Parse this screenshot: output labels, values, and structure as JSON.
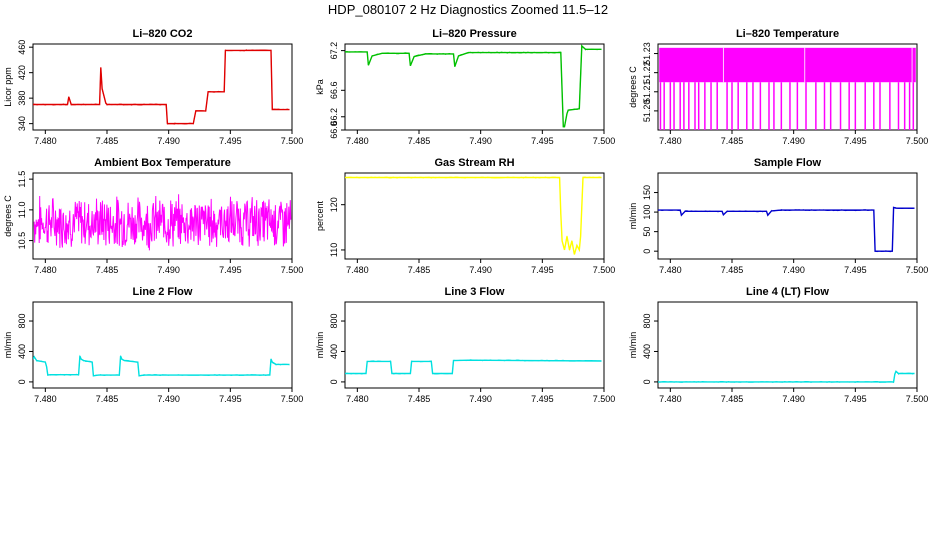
{
  "figure": {
    "title": "HDP_080107  2 Hz Diagnostics Zoomed 11.5–12"
  },
  "chart_data": [
    {
      "type": "line",
      "title": "Li–820 CO2",
      "ylabel": "Licor ppm",
      "color": "#e00000",
      "xlim": [
        7.479,
        7.5
      ],
      "ylim": [
        330,
        465
      ],
      "xticks": [
        "7.480",
        "7.485",
        "7.490",
        "7.495",
        "7.500"
      ],
      "yticks": [
        "340",
        "380",
        "420",
        "460"
      ],
      "x": [
        7.479,
        7.4818,
        7.4819,
        7.4821,
        7.4844,
        7.4845,
        7.4846,
        7.4849,
        7.485,
        7.487,
        7.4898,
        7.4899,
        7.4905,
        7.4906,
        7.492,
        7.4922,
        7.493,
        7.4932,
        7.4945,
        7.4946,
        7.4963,
        7.4983,
        7.4984,
        7.4998
      ],
      "y": [
        370,
        370,
        382,
        370,
        370,
        428,
        395,
        372,
        370,
        370,
        370,
        340,
        340,
        340,
        340,
        360,
        360,
        390,
        390,
        455,
        455,
        455,
        362,
        362
      ]
    },
    {
      "type": "line",
      "title": "Li–820 Pressure",
      "ylabel": "kPa",
      "color": "#00c000",
      "xlim": [
        7.479,
        7.5
      ],
      "ylim": [
        66.0,
        67.3
      ],
      "xticks": [
        "7.480",
        "7.485",
        "7.490",
        "7.495",
        "7.500"
      ],
      "yticks": [
        "66.0",
        "66.2",
        "66.6",
        "67.2"
      ],
      "x": [
        7.479,
        7.4808,
        7.4809,
        7.4812,
        7.482,
        7.4842,
        7.4843,
        7.4846,
        7.4855,
        7.4878,
        7.4879,
        7.4882,
        7.489,
        7.493,
        7.4965,
        7.4967,
        7.4968,
        7.497,
        7.4971,
        7.498,
        7.4982,
        7.4985,
        7.4998
      ],
      "y": [
        67.18,
        67.18,
        66.98,
        67.12,
        67.16,
        67.16,
        66.97,
        67.11,
        67.15,
        67.15,
        66.96,
        67.12,
        67.17,
        67.17,
        67.17,
        66.05,
        66.05,
        66.25,
        66.3,
        66.32,
        67.27,
        67.22,
        67.22
      ]
    },
    {
      "type": "line",
      "title": "Li–820 Temperature",
      "ylabel": "degrees C",
      "color": "#ff00ff",
      "xlim": [
        7.479,
        7.5
      ],
      "ylim": [
        51.19,
        51.235
      ],
      "xticks": [
        "7.480",
        "7.485",
        "7.490",
        "7.495",
        "7.500"
      ],
      "yticks": [
        "51.20",
        "51.21",
        "51.22",
        "51.23"
      ],
      "fill_between": [
        51.215,
        51.233
      ],
      "drop_x": [
        7.4792,
        7.4795,
        7.48,
        7.4803,
        7.4808,
        7.4811,
        7.4815,
        7.482,
        7.4823,
        7.4828,
        7.4833,
        7.4838,
        7.4846,
        7.485,
        7.4855,
        7.4862,
        7.4867,
        7.4873,
        7.488,
        7.4884,
        7.489,
        7.4897,
        7.4903,
        7.491,
        7.4918,
        7.4925,
        7.493,
        7.4938,
        7.4945,
        7.495,
        7.4958,
        7.4965,
        7.497,
        7.4978,
        7.4985,
        7.499,
        7.4994,
        7.4997
      ]
    },
    {
      "type": "line",
      "title": "Ambient Box Temperature",
      "ylabel": "degrees C",
      "color": "#ff00ff",
      "xlim": [
        7.479,
        7.5
      ],
      "ylim": [
        10.2,
        11.6
      ],
      "xticks": [
        "7.480",
        "7.485",
        "7.490",
        "7.495",
        "7.500"
      ],
      "yticks": [
        "10.5",
        "11.0",
        "11.5"
      ],
      "noise": {
        "mean": 10.8,
        "amplitude": 0.35,
        "points": 520,
        "seed": 7
      }
    },
    {
      "type": "line",
      "title": "Gas Stream RH",
      "ylabel": "percent",
      "color": "#ffff00",
      "xlim": [
        7.479,
        7.5
      ],
      "ylim": [
        108,
        127
      ],
      "xticks": [
        "7.480",
        "7.485",
        "7.490",
        "7.495",
        "7.500"
      ],
      "yticks": [
        "110",
        "120"
      ],
      "x": [
        7.479,
        7.4964,
        7.4965,
        7.4966,
        7.4968,
        7.497,
        7.4972,
        7.4974,
        7.4976,
        7.4978,
        7.498,
        7.4981,
        7.4983,
        7.4998
      ],
      "y": [
        126,
        126,
        118,
        112,
        110,
        113,
        110,
        112,
        109,
        111,
        110,
        113,
        126,
        126
      ]
    },
    {
      "type": "line",
      "title": "Sample Flow",
      "ylabel": "ml/min",
      "color": "#0000cc",
      "xlim": [
        7.479,
        7.5
      ],
      "ylim": [
        -20,
        200
      ],
      "xticks": [
        "7.480",
        "7.485",
        "7.490",
        "7.495",
        "7.500"
      ],
      "yticks": [
        "0",
        "50",
        "100",
        "150"
      ],
      "x": [
        7.479,
        7.4808,
        7.4809,
        7.4812,
        7.4842,
        7.4843,
        7.4846,
        7.4878,
        7.4879,
        7.4882,
        7.489,
        7.4965,
        7.4966,
        7.498,
        7.4981,
        7.4983,
        7.4998
      ],
      "y": [
        105,
        105,
        92,
        102,
        102,
        93,
        102,
        102,
        92,
        103,
        105,
        105,
        0,
        0,
        112,
        110,
        110
      ]
    },
    {
      "type": "line",
      "title": "Line 2 Flow",
      "ylabel": "ml/min",
      "color": "#00e0e0",
      "xlim": [
        7.479,
        7.5
      ],
      "ylim": [
        -80,
        1050
      ],
      "xticks": [
        "7.480",
        "7.485",
        "7.490",
        "7.495",
        "7.500"
      ],
      "yticks": [
        "0",
        "400",
        "800"
      ],
      "x": [
        7.479,
        7.4791,
        7.4793,
        7.48,
        7.4801,
        7.4802,
        7.4804,
        7.4827,
        7.4828,
        7.4829,
        7.4831,
        7.4838,
        7.4839,
        7.4843,
        7.486,
        7.4861,
        7.4862,
        7.4864,
        7.4875,
        7.4876,
        7.488,
        7.4982,
        7.4983,
        7.4984,
        7.4987,
        7.4998
      ],
      "y": [
        300,
        330,
        280,
        260,
        200,
        90,
        95,
        95,
        340,
        300,
        280,
        260,
        80,
        90,
        90,
        340,
        300,
        280,
        260,
        80,
        90,
        90,
        300,
        260,
        230,
        230
      ]
    },
    {
      "type": "line",
      "title": "Line 3 Flow",
      "ylabel": "ml/min",
      "color": "#00e0e0",
      "xlim": [
        7.479,
        7.5
      ],
      "ylim": [
        -80,
        1050
      ],
      "xticks": [
        "7.480",
        "7.485",
        "7.490",
        "7.495",
        "7.500"
      ],
      "yticks": [
        "0",
        "400",
        "800"
      ],
      "x": [
        7.479,
        7.4807,
        7.4808,
        7.4827,
        7.4828,
        7.4843,
        7.4844,
        7.486,
        7.4861,
        7.4877,
        7.4878,
        7.489,
        7.4998
      ],
      "y": [
        110,
        110,
        270,
        270,
        110,
        110,
        270,
        270,
        110,
        110,
        280,
        285,
        275
      ]
    },
    {
      "type": "line",
      "title": "Line 4 (LT) Flow",
      "ylabel": "ml/min",
      "color": "#00e0e0",
      "xlim": [
        7.479,
        7.5
      ],
      "ylim": [
        -80,
        1050
      ],
      "xticks": [
        "7.480",
        "7.485",
        "7.490",
        "7.495",
        "7.500"
      ],
      "yticks": [
        "0",
        "400",
        "800"
      ],
      "x": [
        7.479,
        7.4981,
        7.4982,
        7.4983,
        7.4985,
        7.4998
      ],
      "y": [
        0,
        0,
        100,
        140,
        110,
        110
      ]
    }
  ]
}
